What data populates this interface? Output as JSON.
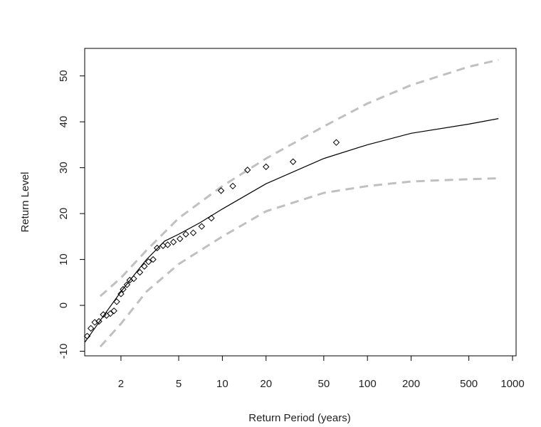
{
  "chart_data": {
    "type": "line",
    "x_label": "Return Period (years)",
    "y_label": "Return Level",
    "log_x": true,
    "xlim": [
      1.125,
      1058
    ],
    "ylim": [
      -11,
      56
    ],
    "xticks": [
      2,
      5,
      10,
      20,
      50,
      100,
      200,
      500,
      1000
    ],
    "yticks": [
      -10,
      0,
      10,
      20,
      30,
      40,
      50
    ],
    "series": [
      {
        "type": "line",
        "style": "solid",
        "color": "#000000",
        "x": [
          1.13,
          1.5,
          2,
          3,
          4,
          5,
          7,
          10,
          20,
          50,
          100,
          200,
          500,
          800
        ],
        "values": [
          -8,
          -2.5,
          3,
          10,
          14,
          15.5,
          18,
          21,
          26.5,
          32,
          35,
          37.5,
          39.5,
          40.7
        ]
      },
      {
        "type": "line",
        "style": "dashed",
        "color": "#c0c0c0",
        "x": [
          1.44,
          2,
          3,
          5,
          10,
          20,
          50,
          100,
          200,
          500,
          800
        ],
        "values": [
          2,
          6,
          12,
          19,
          26,
          32,
          39,
          44,
          48,
          52,
          53.5
        ]
      },
      {
        "type": "line",
        "style": "dashed",
        "color": "#c0c0c0",
        "x": [
          1.44,
          2,
          3,
          5,
          10,
          20,
          50,
          100,
          200,
          500,
          800
        ],
        "values": [
          -9,
          -4,
          3,
          9,
          15,
          20.5,
          24.5,
          26,
          27,
          27.5,
          27.7
        ]
      },
      {
        "type": "scatter",
        "color": "#000000",
        "x": [
          1.17,
          1.24,
          1.32,
          1.41,
          1.51,
          1.59,
          1.69,
          1.79,
          1.87,
          2.0,
          2.07,
          2.2,
          2.3,
          2.45,
          2.7,
          2.9,
          3.1,
          3.33,
          3.55,
          3.9,
          4.2,
          4.6,
          5.1,
          5.6,
          6.3,
          7.2,
          8.4,
          9.8,
          11.8,
          14.9,
          20,
          30.7,
          61
        ],
        "values": [
          -6.7,
          -5,
          -3.7,
          -3.5,
          -2,
          -2.2,
          -1.8,
          -1.2,
          0.8,
          2.5,
          3.5,
          4.5,
          5.5,
          5.8,
          7.2,
          8.5,
          9.5,
          10,
          12.5,
          13,
          13.2,
          13.8,
          14.5,
          15.5,
          15.8,
          17.2,
          19,
          25,
          26,
          29.5,
          30.2,
          31.3,
          35.5
        ]
      }
    ]
  }
}
